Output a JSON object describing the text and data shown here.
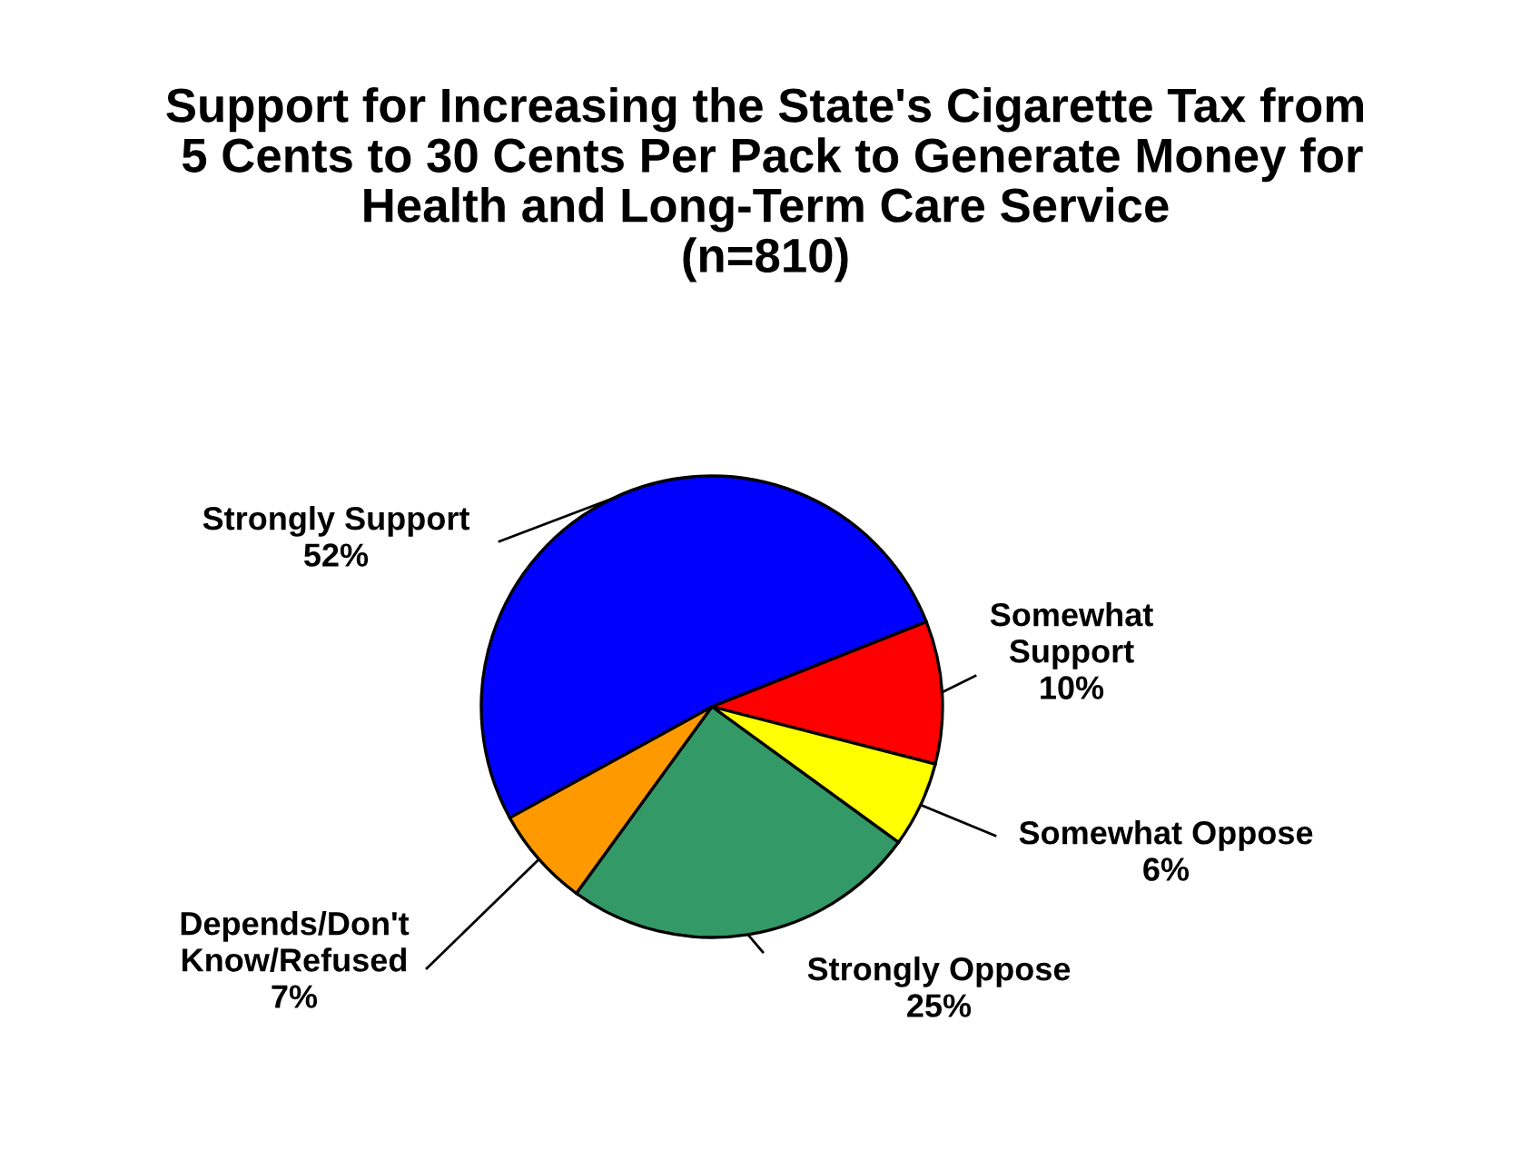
{
  "chart_data": {
    "type": "pie",
    "title": "Support for Increasing the State's Cigarette Tax from\n 5 Cents to 30 Cents Per Pack to Generate Money for\nHealth and Long-Term Care Service\n(n=810)",
    "categories": [
      "Strongly Support",
      "Somewhat\nSupport",
      "Somewhat Oppose",
      "Strongly Oppose",
      "Depends/Don't\nKnow/Refused"
    ],
    "values": [
      52,
      10,
      6,
      25,
      7
    ],
    "value_labels": [
      "52%",
      "10%",
      "6%",
      "25%",
      "7%"
    ],
    "colors": [
      "#0000ff",
      "#ff0000",
      "#ffff00",
      "#339966",
      "#ff9900"
    ],
    "legend": false
  }
}
